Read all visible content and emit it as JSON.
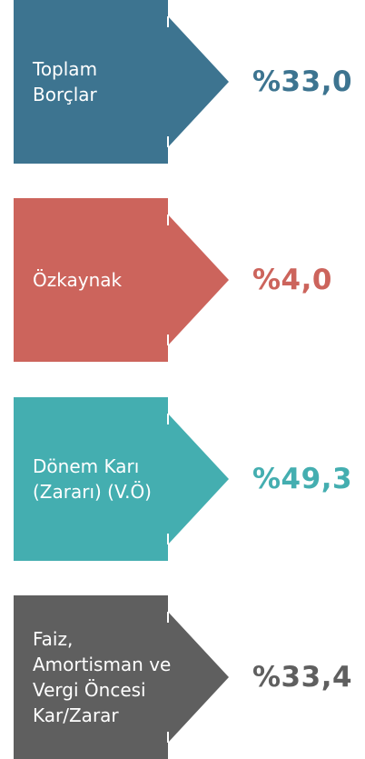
{
  "items": [
    {
      "label": [
        "Toplam",
        "Borçlar"
      ],
      "value": "%33,0",
      "color": "#3d7490"
    },
    {
      "label": [
        "Özkaynak"
      ],
      "value": "%4,0",
      "color": "#cc645c"
    },
    {
      "label": [
        "Dönem Karı",
        "(Zararı) (V.Ö)"
      ],
      "value": "%49,3",
      "color": "#44aeb0"
    },
    {
      "label": [
        "Faiz,",
        "Amortisman ve",
        "Vergi Öncesi",
        "Kar/Zarar"
      ],
      "value": "%33,4",
      "color": "#5f5f5f"
    }
  ]
}
